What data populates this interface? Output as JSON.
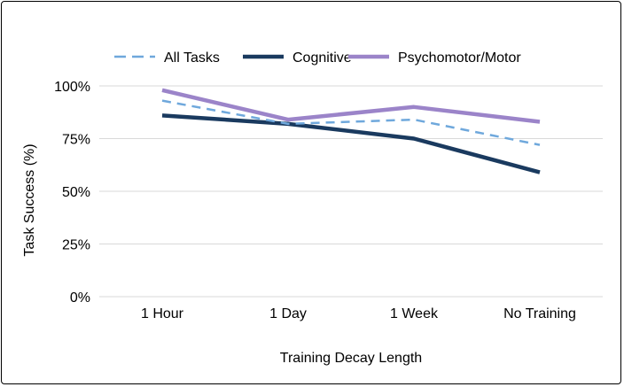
{
  "chart_data": {
    "type": "line",
    "title": "",
    "xlabel": "Training Decay Length",
    "ylabel": "Task Success (%)",
    "categories": [
      "1 Hour",
      "1 Day",
      "1 Week",
      "No Training"
    ],
    "ylim": [
      0,
      100
    ],
    "yticks": [
      "0%",
      "25%",
      "50%",
      "75%",
      "100%"
    ],
    "ytick_values": [
      0,
      25,
      50,
      75,
      100
    ],
    "grid": true,
    "legend_position": "top",
    "series": [
      {
        "name": "All Tasks",
        "values": [
          93,
          82,
          84,
          72
        ],
        "color": "#6fa8dc",
        "style": "dashed"
      },
      {
        "name": "Cognitive",
        "values": [
          86,
          82,
          75,
          59
        ],
        "color": "#1a3a5f",
        "style": "solid"
      },
      {
        "name": "Psychomotor/Motor",
        "values": [
          98,
          84,
          90,
          83
        ],
        "color": "#9b84c9",
        "style": "solid"
      }
    ]
  }
}
